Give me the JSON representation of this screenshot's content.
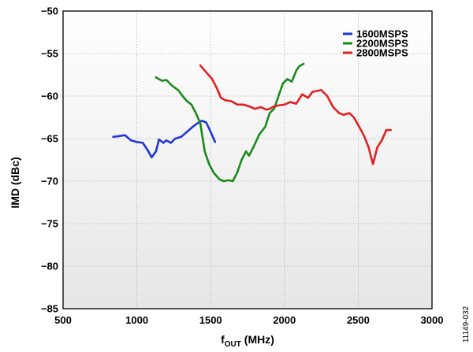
{
  "chart_data": {
    "type": "line",
    "title": "",
    "xlabel_main": "f",
    "xlabel_sub": "OUT",
    "xlabel_unit": " (MHz)",
    "ylabel": "IMD (dBc)",
    "xlim": [
      500,
      3000
    ],
    "ylim": [
      -85,
      -50
    ],
    "xticks": [
      500,
      1000,
      1500,
      2000,
      2500,
      3000
    ],
    "yticks": [
      -50,
      -55,
      -60,
      -65,
      -70,
      -75,
      -80,
      -85
    ],
    "xtick_labels": [
      "500",
      "1000",
      "1500",
      "2000",
      "2500",
      "3000"
    ],
    "ytick_labels": [
      "−50",
      "−55",
      "−60",
      "−65",
      "−70",
      "−75",
      "−80",
      "−85"
    ],
    "grid": true,
    "legend_position": "top-right",
    "series": [
      {
        "name": "1600MSPS",
        "color": "#1f35d6",
        "x": [
          840,
          880,
          920,
          960,
          1000,
          1040,
          1075,
          1100,
          1130,
          1150,
          1180,
          1200,
          1230,
          1260,
          1300,
          1340,
          1380,
          1410,
          1440,
          1470,
          1500,
          1530
        ],
        "y": [
          -64.8,
          -64.7,
          -64.6,
          -65.2,
          -65.4,
          -65.5,
          -66.4,
          -67.2,
          -66.5,
          -65.1,
          -65.5,
          -65.2,
          -65.5,
          -65.0,
          -64.8,
          -64.2,
          -63.6,
          -63.2,
          -62.9,
          -63.1,
          -64.2,
          -65.4
        ]
      },
      {
        "name": "2200MSPS",
        "color": "#1a8a1a",
        "x": [
          1130,
          1170,
          1200,
          1240,
          1280,
          1310,
          1340,
          1370,
          1400,
          1430,
          1460,
          1490,
          1520,
          1560,
          1590,
          1620,
          1650,
          1680,
          1710,
          1740,
          1760,
          1790,
          1830,
          1870,
          1900,
          1930,
          1960,
          1990,
          2020,
          2050,
          2080,
          2100,
          2130
        ],
        "y": [
          -57.8,
          -58.2,
          -58.1,
          -58.8,
          -59.3,
          -60.0,
          -60.6,
          -61.0,
          -62.0,
          -63.2,
          -66.5,
          -68.0,
          -69.0,
          -69.8,
          -70.0,
          -69.9,
          -70.0,
          -69.0,
          -67.5,
          -66.5,
          -67.0,
          -66.0,
          -64.5,
          -63.6,
          -62.0,
          -61.5,
          -60.0,
          -58.5,
          -58.0,
          -58.3,
          -57.0,
          -56.5,
          -56.2
        ]
      },
      {
        "name": "2800MSPS",
        "color": "#e02020",
        "x": [
          1430,
          1470,
          1510,
          1540,
          1570,
          1600,
          1640,
          1680,
          1720,
          1760,
          1800,
          1840,
          1880,
          1900,
          1930,
          1960,
          2000,
          2040,
          2080,
          2120,
          2160,
          2190,
          2220,
          2250,
          2290,
          2330,
          2370,
          2400,
          2440,
          2470,
          2500,
          2540,
          2570,
          2600,
          2630,
          2660,
          2690,
          2720
        ],
        "y": [
          -56.4,
          -57.2,
          -58.0,
          -59.0,
          -60.2,
          -60.5,
          -60.6,
          -61.0,
          -61.0,
          -61.2,
          -61.5,
          -61.3,
          -61.6,
          -61.5,
          -61.2,
          -61.1,
          -61.0,
          -60.7,
          -60.9,
          -59.8,
          -60.2,
          -59.5,
          -59.4,
          -59.3,
          -60.0,
          -61.3,
          -62.0,
          -62.2,
          -62.0,
          -62.5,
          -63.4,
          -64.7,
          -66.0,
          -68.0,
          -66.0,
          -65.2,
          -64.0,
          -64.0
        ]
      }
    ]
  },
  "figure_id": "11149-032"
}
